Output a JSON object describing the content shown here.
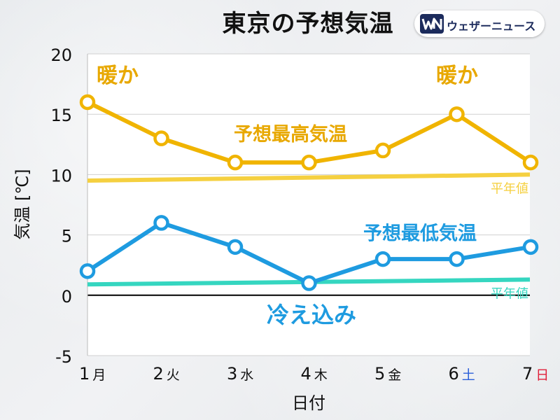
{
  "title": "東京の予想気温",
  "brand": {
    "name": "ウェザーニュース",
    "logo": "WN"
  },
  "chart_data": {
    "type": "line",
    "xlabel": "日付",
    "ylabel": "気温 [℃]",
    "ylim": [
      -5,
      20
    ],
    "yticks": [
      -5,
      0,
      5,
      10,
      15,
      20
    ],
    "grid": true,
    "categories": [
      {
        "day": "1",
        "dow": "月"
      },
      {
        "day": "2",
        "dow": "火"
      },
      {
        "day": "3",
        "dow": "水"
      },
      {
        "day": "4",
        "dow": "木"
      },
      {
        "day": "5",
        "dow": "金"
      },
      {
        "day": "6",
        "dow": "土"
      },
      {
        "day": "7",
        "dow": "日"
      }
    ],
    "dow_colors": {
      "土": "#2b5fd9",
      "日": "#e0203a"
    },
    "series": [
      {
        "name": "予想最高気温",
        "values": [
          16,
          13,
          11,
          11,
          12,
          15,
          11
        ],
        "color": "#f0b400",
        "label_color": "#e8a800"
      },
      {
        "name": "予想最低気温",
        "values": [
          2,
          6,
          4,
          1,
          3,
          3,
          4
        ],
        "color": "#1e9be0",
        "label_color": "#1e9be0"
      }
    ],
    "normals": [
      {
        "label": "平年値",
        "start": 9.5,
        "end": 10.0,
        "color": "#f5d040"
      },
      {
        "label": "平年値",
        "start": 0.9,
        "end": 1.3,
        "color": "#35d6c0"
      }
    ],
    "annotations": [
      {
        "text": "暖か",
        "x_index": 0,
        "y": 18.2,
        "color": "#e8a800"
      },
      {
        "text": "暖か",
        "x_index": 5,
        "y": 18.2,
        "color": "#e8a800"
      },
      {
        "text": "冷え込み",
        "x_index": 3,
        "y": -1.7,
        "color": "#1e9be0"
      }
    ]
  }
}
